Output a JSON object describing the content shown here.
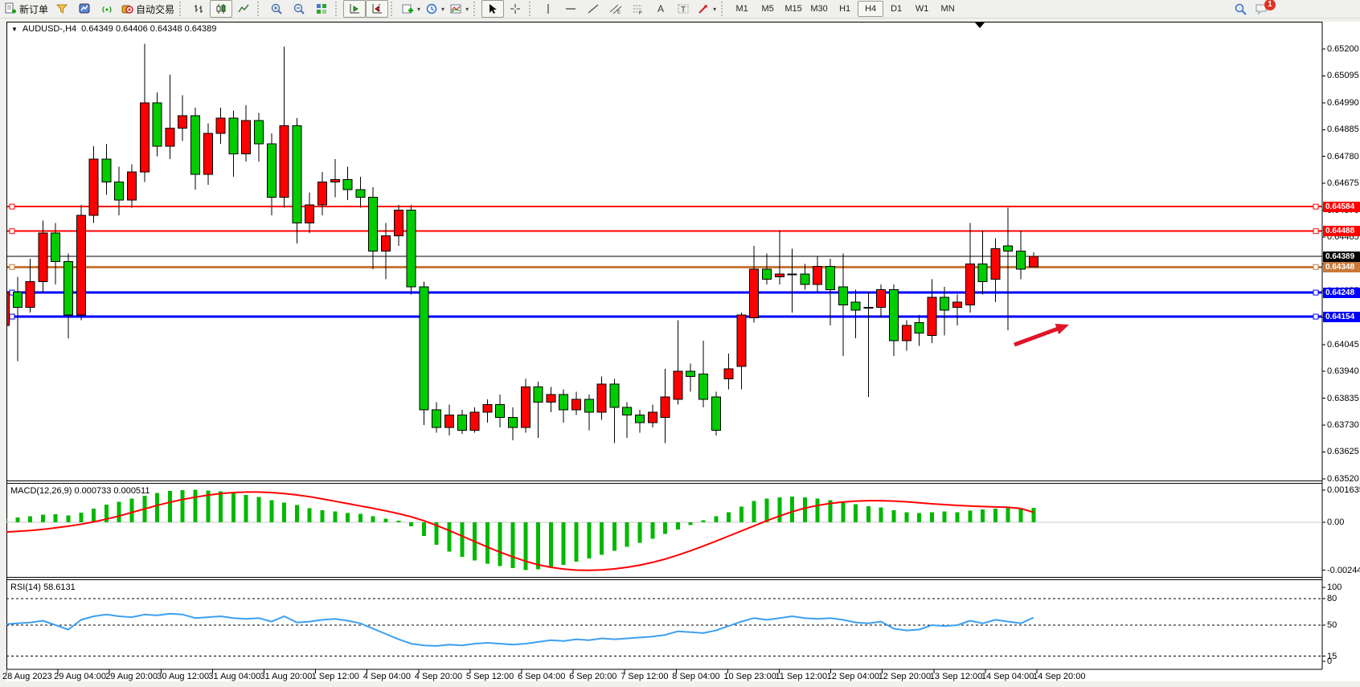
{
  "toolbar": {
    "new_order_label": "新订单",
    "auto_trading_label": "自动交易",
    "timeframes": [
      "M1",
      "M5",
      "M15",
      "M30",
      "H1",
      "H4",
      "D1",
      "W1",
      "MN"
    ],
    "active_timeframe": "H4",
    "notification_badge": "1"
  },
  "window": {
    "symbol_dropdown": "▼",
    "symbol_title": "AUDUSD-,H4",
    "ohlc_readout": "0.64349 0.64406 0.64348 0.64389"
  },
  "chart_data": {
    "type": "candlestick",
    "symbol": "AUDUSD-",
    "timeframe": "H4",
    "ohlc_current": {
      "open": "0.64349",
      "high": "0.64406",
      "low": "0.64348",
      "close": "0.64389"
    },
    "price_axis_ticks": [
      "0.65200",
      "0.65095",
      "0.64990",
      "0.64885",
      "0.64780",
      "0.64675",
      "0.64570",
      "0.64465",
      "0.64360",
      "0.64255",
      "0.64150",
      "0.64045",
      "0.63940",
      "0.63835",
      "0.63730",
      "0.63625",
      "0.63520"
    ],
    "time_axis": [
      "28 Aug 2023",
      "29 Aug 04:00",
      "29 Aug 20:00",
      "30 Aug 12:00",
      "31 Aug 04:00",
      "31 Aug 20:00",
      "1 Sep 12:00",
      "4 Sep 04:00",
      "4 Sep 20:00",
      "5 Sep 12:00",
      "6 Sep 04:00",
      "6 Sep 20:00",
      "7 Sep 12:00",
      "8 Sep 04:00",
      "10 Sep 23:00",
      "11 Sep 12:00",
      "12 Sep 04:00",
      "12 Sep 20:00",
      "13 Sep 12:00",
      "14 Sep 04:00",
      "14 Sep 20:00"
    ],
    "bull_color": "#ff0000",
    "bear_color": "#00cc00",
    "candles": [
      [
        0.6412,
        0.6427,
        0.6404,
        0.6425
      ],
      [
        0.6425,
        0.6431,
        0.6398,
        0.6419
      ],
      [
        0.6419,
        0.6438,
        0.6417,
        0.6429
      ],
      [
        0.6429,
        0.6453,
        0.6425,
        0.6448
      ],
      [
        0.6448,
        0.6452,
        0.6428,
        0.6437
      ],
      [
        0.6437,
        0.644,
        0.6407,
        0.6416
      ],
      [
        0.6416,
        0.6459,
        0.6414,
        0.6455
      ],
      [
        0.6455,
        0.6482,
        0.6452,
        0.6477
      ],
      [
        0.6477,
        0.6483,
        0.6463,
        0.6468
      ],
      [
        0.6468,
        0.6474,
        0.6455,
        0.6461
      ],
      [
        0.6461,
        0.6475,
        0.6458,
        0.6472
      ],
      [
        0.6472,
        0.6522,
        0.6468,
        0.6499
      ],
      [
        0.6499,
        0.6503,
        0.6478,
        0.6482
      ],
      [
        0.6482,
        0.651,
        0.6477,
        0.6489
      ],
      [
        0.6489,
        0.6502,
        0.6484,
        0.6494
      ],
      [
        0.6494,
        0.6497,
        0.6465,
        0.6471
      ],
      [
        0.6471,
        0.6491,
        0.6467,
        0.6487
      ],
      [
        0.6487,
        0.6497,
        0.6483,
        0.6493
      ],
      [
        0.6493,
        0.6496,
        0.647,
        0.6479
      ],
      [
        0.6479,
        0.6498,
        0.6476,
        0.6492
      ],
      [
        0.6492,
        0.6495,
        0.6476,
        0.6483
      ],
      [
        0.6483,
        0.6487,
        0.6455,
        0.6462
      ],
      [
        0.6462,
        0.6521,
        0.6458,
        0.649
      ],
      [
        0.649,
        0.6493,
        0.6444,
        0.6452
      ],
      [
        0.6452,
        0.6464,
        0.6448,
        0.6459
      ],
      [
        0.6459,
        0.6472,
        0.6455,
        0.6468
      ],
      [
        0.6468,
        0.6477,
        0.6462,
        0.6469
      ],
      [
        0.6469,
        0.6474,
        0.6461,
        0.6465
      ],
      [
        0.6465,
        0.647,
        0.6458,
        0.6462
      ],
      [
        0.6462,
        0.6466,
        0.6434,
        0.6441
      ],
      [
        0.6441,
        0.6452,
        0.643,
        0.6447
      ],
      [
        0.6447,
        0.6459,
        0.6443,
        0.6457
      ],
      [
        0.6457,
        0.6459,
        0.6424,
        0.6427
      ],
      [
        0.6427,
        0.6429,
        0.6373,
        0.6379
      ],
      [
        0.6379,
        0.6382,
        0.637,
        0.6372
      ],
      [
        0.6372,
        0.6381,
        0.6369,
        0.6377
      ],
      [
        0.6377,
        0.6379,
        0.63695,
        0.6371
      ],
      [
        0.6371,
        0.638,
        0.637,
        0.6378
      ],
      [
        0.6378,
        0.6383,
        0.6374,
        0.6381
      ],
      [
        0.6381,
        0.6385,
        0.6372,
        0.6376
      ],
      [
        0.6376,
        0.638,
        0.6367,
        0.6372
      ],
      [
        0.6372,
        0.6391,
        0.637,
        0.6388
      ],
      [
        0.6388,
        0.639,
        0.6368,
        0.6382
      ],
      [
        0.6382,
        0.6388,
        0.6378,
        0.6385
      ],
      [
        0.6385,
        0.6387,
        0.6374,
        0.6379
      ],
      [
        0.6379,
        0.6386,
        0.6377,
        0.6383
      ],
      [
        0.6383,
        0.6385,
        0.6371,
        0.6378
      ],
      [
        0.6378,
        0.6392,
        0.6375,
        0.6389
      ],
      [
        0.6389,
        0.6391,
        0.6366,
        0.638
      ],
      [
        0.638,
        0.6382,
        0.6368,
        0.6377
      ],
      [
        0.6377,
        0.6379,
        0.637,
        0.6374
      ],
      [
        0.6374,
        0.6381,
        0.6372,
        0.6378
      ],
      [
        0.6376,
        0.6395,
        0.6366,
        0.6384
      ],
      [
        0.6383,
        0.6414,
        0.6381,
        0.6394
      ],
      [
        0.6394,
        0.6397,
        0.6386,
        0.6392
      ],
      [
        0.6393,
        0.6406,
        0.638,
        0.6383
      ],
      [
        0.6384,
        0.6386,
        0.6369,
        0.6371
      ],
      [
        0.6391,
        0.6401,
        0.6387,
        0.6395
      ],
      [
        0.6396,
        0.6417,
        0.6387,
        0.6416
      ],
      [
        0.6415,
        0.6443,
        0.6413,
        0.6434
      ],
      [
        0.6434,
        0.644,
        0.6428,
        0.643
      ],
      [
        0.6431,
        0.6449,
        0.6428,
        0.6432
      ],
      [
        0.6432,
        0.6442,
        0.6417,
        0.6432
      ],
      [
        0.6432,
        0.6436,
        0.6426,
        0.6428
      ],
      [
        0.6428,
        0.6439,
        0.6425,
        0.6435
      ],
      [
        0.6435,
        0.6438,
        0.6412,
        0.6426
      ],
      [
        0.6427,
        0.644,
        0.64,
        0.642
      ],
      [
        0.6421,
        0.6426,
        0.6407,
        0.6418
      ],
      [
        0.6419,
        0.6425,
        0.6384,
        0.6419
      ],
      [
        0.6419,
        0.6428,
        0.6415,
        0.6426
      ],
      [
        0.6426,
        0.6428,
        0.64,
        0.6406
      ],
      [
        0.6406,
        0.6414,
        0.6402,
        0.6412
      ],
      [
        0.6413,
        0.6416,
        0.6404,
        0.6409
      ],
      [
        0.6408,
        0.643,
        0.6405,
        0.6423
      ],
      [
        0.6423,
        0.6427,
        0.6408,
        0.6418
      ],
      [
        0.6419,
        0.6424,
        0.6412,
        0.6421
      ],
      [
        0.642,
        0.6452,
        0.6417,
        0.6436
      ],
      [
        0.6436,
        0.6449,
        0.6424,
        0.6429
      ],
      [
        0.643,
        0.6446,
        0.6421,
        0.6442
      ],
      [
        0.6443,
        0.6458,
        0.641,
        0.6441
      ],
      [
        0.6441,
        0.6449,
        0.643,
        0.6434
      ],
      [
        0.64349,
        0.64406,
        0.64348,
        0.64389
      ]
    ],
    "bid": {
      "price": 0.64389,
      "label": "0.64389",
      "color": "#000000"
    },
    "hlines": [
      {
        "price": 0.64584,
        "label": "0.64584",
        "color": "#ff0000",
        "width": 2,
        "name": "resistance-line-1"
      },
      {
        "price": 0.64488,
        "label": "0.64488",
        "color": "#ff0000",
        "width": 2,
        "name": "resistance-line-2"
      },
      {
        "price": 0.64348,
        "label": "0.64348",
        "color": "#c87838",
        "width": 3,
        "name": "pivot-line"
      },
      {
        "price": 0.64248,
        "label": "0.64248",
        "color": "#0000ff",
        "width": 3,
        "name": "support-line-1"
      },
      {
        "price": 0.64154,
        "label": "0.64154",
        "color": "#0000ff",
        "width": 3,
        "name": "support-line-2"
      }
    ],
    "macd": {
      "label": "MACD(12,26,9) 0.000733 0.000511",
      "axis_ticks": [
        "0.001635",
        "0.00",
        "-0.002442"
      ],
      "histogram_color": "#00b800",
      "signal_color": "#ff0000",
      "histogram": [
        0.0002,
        0.00025,
        0.0003,
        0.00038,
        0.0004,
        0.00035,
        0.0005,
        0.0007,
        0.0009,
        0.00105,
        0.0012,
        0.00135,
        0.0015,
        0.0016,
        0.00163,
        0.00165,
        0.00162,
        0.00158,
        0.0015,
        0.0014,
        0.00128,
        0.00112,
        0.001,
        0.00088,
        0.00072,
        0.00062,
        0.00055,
        0.00048,
        0.00042,
        0.0003,
        0.00018,
        8e-05,
        -0.0002,
        -0.0007,
        -0.00115,
        -0.0015,
        -0.00175,
        -0.00195,
        -0.0021,
        -0.00222,
        -0.00234,
        -0.00244,
        -0.0024,
        -0.0023,
        -0.00216,
        -0.002,
        -0.00184,
        -0.00165,
        -0.00145,
        -0.00124,
        -0.00104,
        -0.00084,
        -0.0006,
        -0.00036,
        -0.00014,
        0.0001,
        0.0003,
        0.00052,
        0.0008,
        0.00108,
        0.0012,
        0.00126,
        0.0013,
        0.00126,
        0.0012,
        0.00112,
        0.00102,
        0.00092,
        0.00082,
        0.00076,
        0.00062,
        0.00052,
        0.00046,
        0.00052,
        0.00056,
        0.00052,
        0.0006,
        0.00066,
        0.0007,
        0.00072,
        0.0007,
        0.000733
      ],
      "signal": [
        -0.0005,
        -0.00046,
        -0.00042,
        -0.00036,
        -0.00028,
        -0.0002,
        -0.0001,
        2e-05,
        0.00016,
        0.00032,
        0.0005,
        0.00068,
        0.00086,
        0.00102,
        0.00116,
        0.00128,
        0.00138,
        0.00146,
        0.00151,
        0.00154,
        0.00154,
        0.00151,
        0.00146,
        0.00139,
        0.0013,
        0.00119,
        0.00107,
        0.00095,
        0.00083,
        0.00071,
        0.00058,
        0.00044,
        0.00028,
        8e-05,
        -0.00016,
        -0.00042,
        -0.0007,
        -0.00098,
        -0.00126,
        -0.00152,
        -0.00176,
        -0.00198,
        -0.00216,
        -0.00229,
        -0.00238,
        -0.00243,
        -0.00244,
        -0.00242,
        -0.00237,
        -0.00229,
        -0.00218,
        -0.00204,
        -0.00187,
        -0.00167,
        -0.00145,
        -0.00121,
        -0.00096,
        -0.0007,
        -0.00044,
        -0.00018,
        8e-05,
        0.00032,
        0.00054,
        0.00072,
        0.00086,
        0.00096,
        0.00103,
        0.00108,
        0.0011,
        0.0011,
        0.00108,
        0.00104,
        0.00099,
        0.00094,
        0.0009,
        0.00086,
        0.00083,
        0.0008,
        0.00078,
        0.00076,
        0.0007,
        0.000511
      ]
    },
    "rsi": {
      "label": "RSI(14) 58.6131",
      "axis_ticks": [
        "100",
        "80",
        "50",
        "15",
        "0"
      ],
      "dashed_levels": [
        80,
        50,
        15
      ],
      "line_color": "#3da0f0",
      "series": [
        51,
        52,
        53,
        55,
        50,
        45,
        56,
        60,
        62,
        60,
        59,
        62,
        61,
        63,
        62,
        58,
        59,
        60,
        58,
        57,
        58,
        54,
        60,
        53,
        54,
        56,
        57,
        55,
        52,
        46,
        40,
        34,
        29,
        27,
        26.5,
        28,
        27,
        29,
        30,
        29,
        28,
        29,
        31,
        33,
        32,
        34,
        33,
        35,
        34,
        35,
        36,
        37,
        39,
        43,
        42,
        41,
        44,
        49,
        54,
        58,
        56,
        58,
        60,
        58,
        57,
        58,
        56,
        53,
        52,
        54,
        46,
        44,
        45,
        50,
        49,
        50,
        55,
        52,
        56,
        54,
        52,
        58.6
      ]
    },
    "annotation_arrow": {
      "from": [
        1262,
        429
      ],
      "to": [
        1330,
        404
      ],
      "color": "#e01428"
    }
  }
}
